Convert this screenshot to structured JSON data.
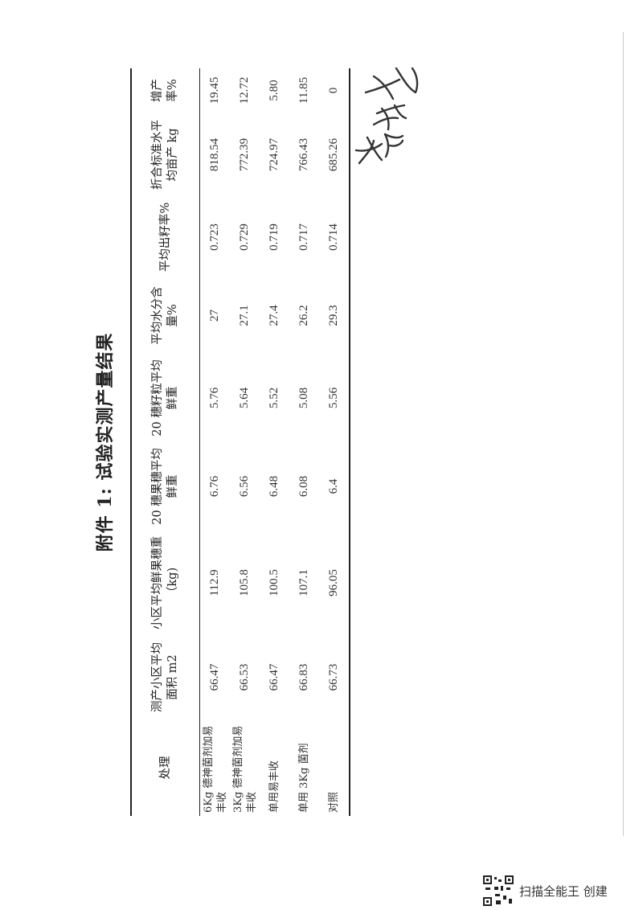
{
  "title": "附件 1: 试验实测产量结果",
  "table": {
    "headers": [
      "处理",
      "测产小区平均面积 m2",
      "小区平均鲜果穗重（kg)",
      "20 穗果穗平均鲜重",
      "20 穗籽粒平均鲜重",
      "平均水分含量%",
      "平均出籽率%",
      "折合标准水平均亩产 kg",
      "增产率%"
    ],
    "rows": [
      [
        "6Kg 德神菌剂加易丰收",
        "66.47",
        "112.9",
        "6.76",
        "5.76",
        "27",
        "0.723",
        "818.54",
        "19.45"
      ],
      [
        "3Kg 德神菌剂加易丰收",
        "66.53",
        "105.8",
        "6.56",
        "5.64",
        "27.1",
        "0.729",
        "772.39",
        "12.72"
      ],
      [
        "单用易丰收",
        "66.47",
        "100.5",
        "6.48",
        "5.52",
        "27.4",
        "0.719",
        "724.97",
        "5.80"
      ],
      [
        "单用 3Kg 菌剂",
        "66.83",
        "107.1",
        "6.08",
        "5.08",
        "26.2",
        "0.717",
        "766.43",
        "11.85"
      ],
      [
        "对照",
        "66.73",
        "96.05",
        "6.4",
        "5.56",
        "29.3",
        "0.714",
        "685.26",
        "0"
      ]
    ]
  },
  "signature": "赵海龙",
  "footer": {
    "text": "扫描全能王 创建",
    "icon": "qr-code-icon"
  }
}
